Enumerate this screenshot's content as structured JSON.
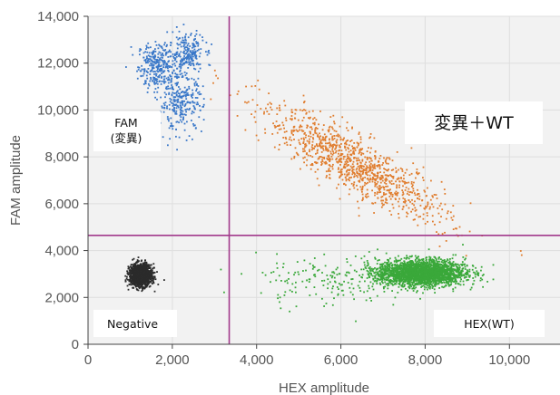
{
  "chart_data": {
    "type": "scatter",
    "xlabel": "HEX amplitude",
    "ylabel": "FAM amplitude",
    "xlim": [
      0,
      11200
    ],
    "ylim": [
      0,
      14000
    ],
    "x_ticks": [
      0,
      2000,
      4000,
      6000,
      8000,
      10000
    ],
    "x_tick_labels": [
      "0",
      "2,000",
      "4,000",
      "6,000",
      "8,000",
      "10,000"
    ],
    "y_ticks": [
      0,
      2000,
      4000,
      6000,
      8000,
      10000,
      12000,
      14000
    ],
    "y_tick_labels": [
      "0",
      "2,000",
      "4,000",
      "6,000",
      "8,000",
      "10,000",
      "12,000",
      "14,000"
    ],
    "grid": true,
    "thresholds": {
      "x": 3350,
      "y": 4650,
      "color": "#a23a8c"
    },
    "series": [
      {
        "name": "FAM\n(変異)",
        "color": "#3a78c9",
        "clusters": [
          {
            "x_mean": 1650,
            "y_mean": 11900,
            "x_sd": 230,
            "y_sd": 480,
            "count": 300
          },
          {
            "x_mean": 2350,
            "y_mean": 12400,
            "x_sd": 200,
            "y_sd": 420,
            "count": 220
          },
          {
            "x_mean": 2200,
            "y_mean": 10300,
            "x_sd": 260,
            "y_sd": 600,
            "count": 280
          }
        ]
      },
      {
        "name": "変異＋WT",
        "color": "#e07d2e",
        "clusters": [
          {
            "x_mean": 6350,
            "y_mean": 7650,
            "x_sd": 1100,
            "y_sd": 1250,
            "corr": -0.87,
            "count": 1100
          }
        ]
      },
      {
        "name": "HEX(WT)",
        "color": "#3aa83a",
        "clusters": [
          {
            "x_mean": 7900,
            "y_mean": 3050,
            "x_sd": 520,
            "y_sd": 280,
            "count": 2400
          },
          {
            "x_mean": 5800,
            "y_mean": 2700,
            "x_sd": 900,
            "y_sd": 550,
            "count": 180
          }
        ]
      },
      {
        "name": "Negative",
        "color": "#2b2b2b",
        "clusters": [
          {
            "x_mean": 1250,
            "y_mean": 2950,
            "x_sd": 130,
            "y_sd": 230,
            "count": 1400
          }
        ]
      }
    ],
    "quadrant_labels": [
      {
        "text": "FAM\n(変異)",
        "position": "top-left"
      },
      {
        "text": "変異＋WT",
        "position": "top-right"
      },
      {
        "text": "Negative",
        "position": "bottom-left"
      },
      {
        "text": "HEX(WT)",
        "position": "bottom-right"
      }
    ]
  }
}
